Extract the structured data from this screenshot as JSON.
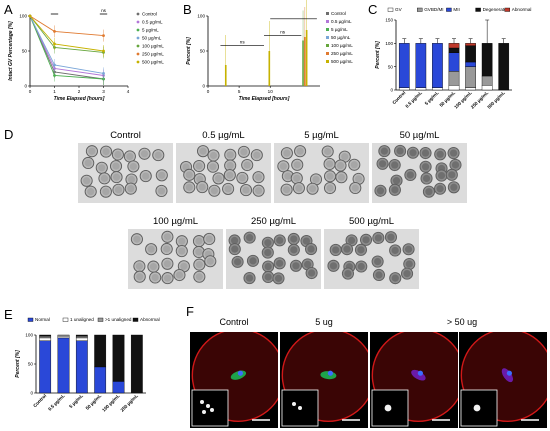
{
  "panels": {
    "A": {
      "letter": "A"
    },
    "B": {
      "letter": "B"
    },
    "C": {
      "letter": "C"
    },
    "D": {
      "letter": "D"
    },
    "E": {
      "letter": "E"
    },
    "F": {
      "letter": "F"
    }
  },
  "colors": {
    "control": "#6e6e6e",
    "c05": "#b276d8",
    "c5": "#4caf50",
    "c50": "#7aa6d8",
    "c100": "#66a63c",
    "c250": "#e07a30",
    "c500": "#c6b200",
    "gv": "#ffffff",
    "gvbd": "#999999",
    "mii": "#2a48d8",
    "degenerate": "#111111",
    "abnormal": "#c0392b"
  },
  "chart_data": [
    {
      "id": "A",
      "type": "line",
      "title": "",
      "xlabel": "Time Elapsed [hours]",
      "ylabel": "Intact GV Percentage [%]",
      "xlim": [
        0,
        4
      ],
      "ylim": [
        0,
        100
      ],
      "xticks": [
        "0",
        "1",
        "2",
        "3",
        "4"
      ],
      "yticks": [
        "0",
        "50",
        "100"
      ],
      "x": [
        0,
        1,
        3
      ],
      "series": [
        {
          "name": "Control",
          "color": "#6e6e6e",
          "values": [
            100,
            20,
            10
          ]
        },
        {
          "name": "0.5 µg/mL",
          "color": "#b276d8",
          "values": [
            100,
            25,
            15
          ]
        },
        {
          "name": "5 µg/mL",
          "color": "#4caf50",
          "values": [
            100,
            15,
            10
          ]
        },
        {
          "name": "50 µg/mL",
          "color": "#7aa6d8",
          "values": [
            100,
            30,
            18
          ]
        },
        {
          "name": "100 µg/mL",
          "color": "#66a63c",
          "values": [
            100,
            55,
            48
          ]
        },
        {
          "name": "250 µg/mL",
          "color": "#e07a30",
          "values": [
            100,
            78,
            72
          ]
        },
        {
          "name": "500 µg/mL",
          "color": "#c6b200",
          "values": [
            100,
            60,
            50
          ]
        }
      ],
      "annotations": [
        "ns"
      ],
      "legend": "right"
    },
    {
      "id": "B",
      "type": "bar",
      "title": "",
      "xlabel": "Time Elapsed [hours]",
      "ylabel": "Percent [%]",
      "xlim": [
        0,
        18
      ],
      "ylim": [
        0,
        100
      ],
      "xticks": [
        "0",
        "5",
        "10"
      ],
      "yticks": [
        "0",
        "50",
        "100"
      ],
      "groups": [
        {
          "x": 2,
          "values": [
            0,
            0,
            0,
            0,
            0,
            0,
            30
          ]
        },
        {
          "x": 9,
          "values": [
            0,
            0,
            0,
            0,
            0,
            0,
            50
          ]
        },
        {
          "x": 15,
          "values": [
            0,
            0,
            0,
            0,
            65,
            70,
            80
          ]
        }
      ],
      "series": [
        {
          "name": "Control",
          "color": "#6e6e6e"
        },
        {
          "name": "0.5 µg/mL",
          "color": "#b276d8"
        },
        {
          "name": "5 µg/mL",
          "color": "#4caf50"
        },
        {
          "name": "50 µg/mL",
          "color": "#7aa6d8"
        },
        {
          "name": "100 µg/mL",
          "color": "#66a63c"
        },
        {
          "name": "250 µg/mL",
          "color": "#e07a30"
        },
        {
          "name": "500 µg/mL",
          "color": "#c6b200"
        }
      ],
      "annotations": [
        "ns",
        "ns"
      ],
      "legend": "right"
    },
    {
      "id": "C",
      "type": "bar",
      "stacked": true,
      "title": "",
      "ylabel": "Percent [%]",
      "ylim": [
        0,
        150
      ],
      "yticks": [
        "0",
        "50",
        "100",
        "150"
      ],
      "categories": [
        "Control",
        "0.5 µg/mL",
        "5 µg/mL",
        "50 µg/mL",
        "100 µg/mL",
        "250 µg/mL",
        "500 µg/mL"
      ],
      "series": [
        {
          "name": "GV",
          "color": "#ffffff",
          "values": [
            5,
            5,
            5,
            10,
            5,
            10,
            0
          ]
        },
        {
          "name": "GVBD/MI",
          "color": "#999999",
          "values": [
            0,
            0,
            0,
            30,
            45,
            20,
            0
          ]
        },
        {
          "name": "MII",
          "color": "#2a48d8",
          "values": [
            95,
            95,
            95,
            40,
            10,
            0,
            0
          ]
        },
        {
          "name": "Degenerate",
          "color": "#111111",
          "values": [
            0,
            0,
            0,
            10,
            35,
            70,
            100
          ]
        },
        {
          "name": "Abnormal",
          "color": "#c0392b",
          "values": [
            0,
            0,
            0,
            10,
            5,
            0,
            0
          ]
        }
      ],
      "legend": "top"
    },
    {
      "id": "E",
      "type": "bar",
      "stacked": true,
      "title": "",
      "ylabel": "Percent [%]",
      "ylim": [
        0,
        100
      ],
      "yticks": [
        "0",
        "50",
        "100"
      ],
      "categories": [
        "Control",
        "0.5 µg/mL",
        "5 µg/mL",
        "50 µg/mL",
        "100 µg/mL",
        "250 µg/mL"
      ],
      "series": [
        {
          "name": "Normal",
          "color": "#2a48d8",
          "values": [
            90,
            95,
            90,
            45,
            20,
            0
          ]
        },
        {
          "name": "1 unaligned",
          "color": "#ffffff",
          "values": [
            5,
            3,
            5,
            0,
            0,
            0
          ]
        },
        {
          "name": ">1 unaligned",
          "color": "#999999",
          "values": [
            3,
            2,
            3,
            0,
            0,
            0
          ]
        },
        {
          "name": "Abnormal",
          "color": "#111111",
          "values": [
            2,
            0,
            2,
            55,
            80,
            100
          ]
        }
      ],
      "legend": "top"
    }
  ],
  "micrographs": {
    "top": [
      {
        "label": "Control"
      },
      {
        "label": "0.5 µg/mL"
      },
      {
        "label": "5 µg/mL"
      },
      {
        "label": "50 µg/mL"
      }
    ],
    "bottom": [
      {
        "label": "100 µg/mL"
      },
      {
        "label": "250 µg/mL"
      },
      {
        "label": "500 µg/mL"
      }
    ]
  },
  "fluorescence": [
    {
      "label": "Control"
    },
    {
      "label": "5 ug"
    },
    {
      "label": "> 50 ug"
    }
  ]
}
